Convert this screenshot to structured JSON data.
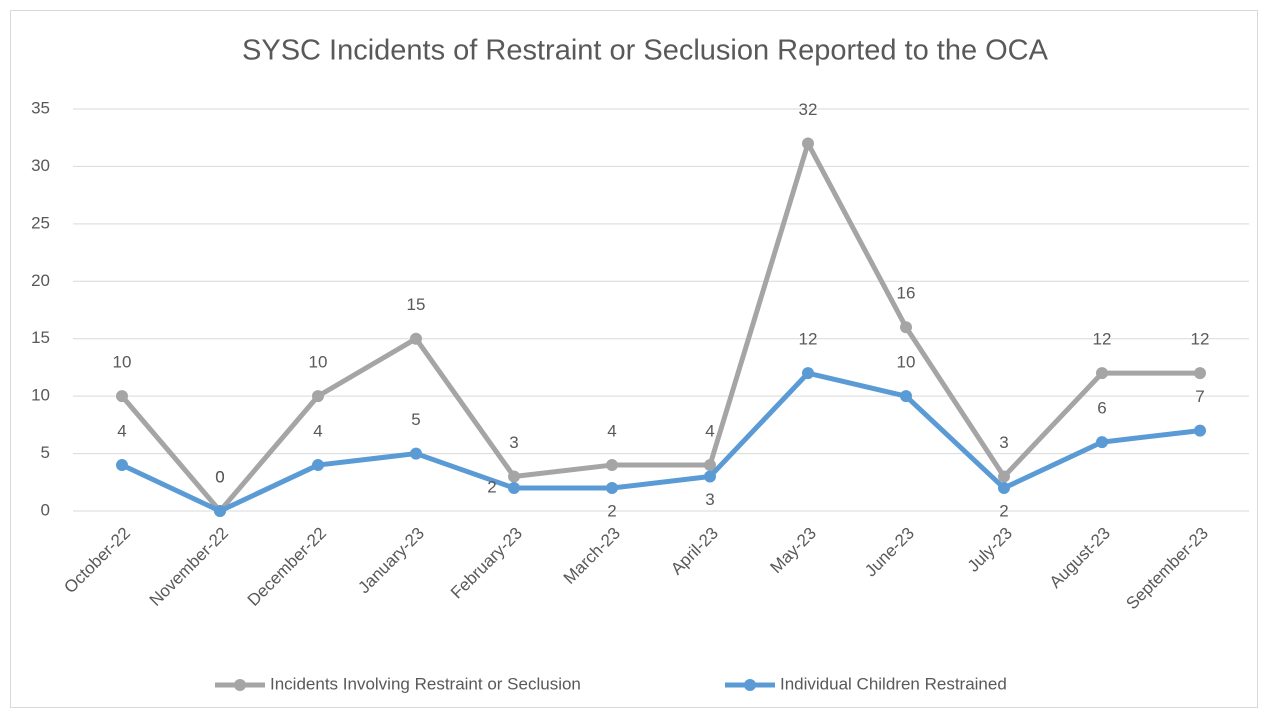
{
  "chart_data": {
    "type": "line",
    "title": "SYSC Incidents of Restraint or Seclusion Reported to the OCA",
    "categories": [
      "October-22",
      "November-22",
      "December-22",
      "January-23",
      "February-23",
      "March-23",
      "April-23",
      "May-23",
      "June-23",
      "July-23",
      "August-23",
      "September-23"
    ],
    "series": [
      {
        "name": "Incidents Involving Restraint or Seclusion",
        "color": "#a5a5a5",
        "values": [
          10,
          0,
          10,
          15,
          3,
          4,
          4,
          32,
          16,
          3,
          12,
          12
        ]
      },
      {
        "name": "Individual Children Restrained",
        "color": "#5b9bd5",
        "values": [
          4,
          0,
          4,
          5,
          2,
          2,
          3,
          12,
          10,
          2,
          6,
          7
        ]
      }
    ],
    "ylim": [
      0,
      35
    ],
    "yticks": [
      0,
      5,
      10,
      15,
      20,
      25,
      30,
      35
    ],
    "grid": true,
    "legend": "bottom"
  }
}
